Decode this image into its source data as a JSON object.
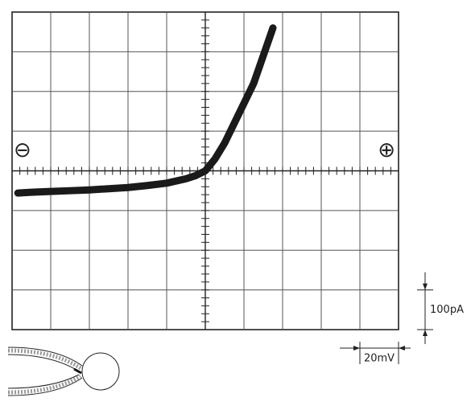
{
  "chart_data": {
    "type": "line",
    "xlim": [
      -100,
      100
    ],
    "ylim": [
      -400,
      400
    ],
    "grid": true,
    "scale_bars": {
      "x": {
        "value": 20,
        "label": "20mV"
      },
      "y": {
        "value": 100,
        "label": "100pA"
      }
    },
    "polarity_labels": [
      "⊖",
      "⊕"
    ],
    "series": [
      {
        "color": "#1a1a1a",
        "x": [
          -97,
          -90,
          -80,
          -70,
          -60,
          -50,
          -40,
          -30,
          -20,
          -10,
          -5,
          0,
          5,
          10,
          15,
          20,
          25,
          30,
          35
        ],
        "values": [
          -56,
          -54,
          -52,
          -50,
          -48,
          -45,
          -42,
          -37,
          -31,
          -20,
          -12,
          0,
          30,
          70,
          120,
          170,
          220,
          290,
          360
        ]
      }
    ]
  }
}
